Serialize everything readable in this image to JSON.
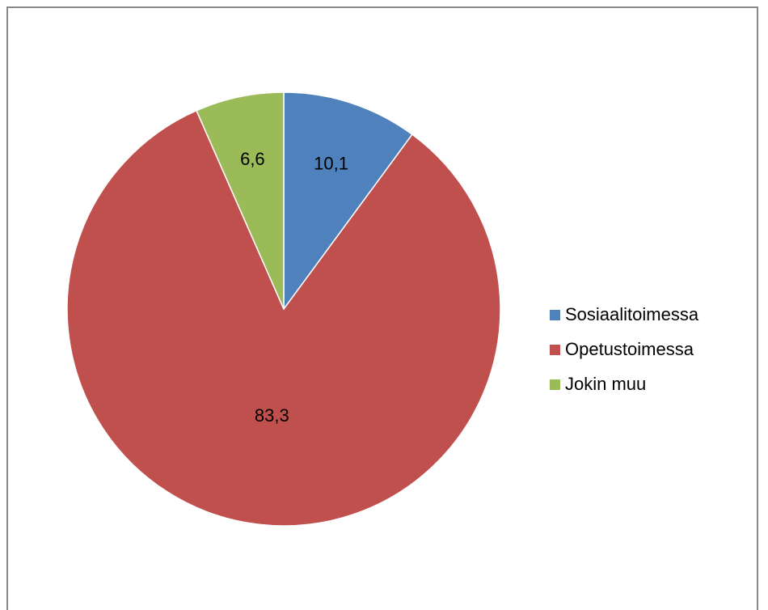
{
  "chart_data": {
    "type": "pie",
    "title": "",
    "categories": [
      "Sosiaalitoimessa",
      "Opetustoimessa",
      "Jokin muu"
    ],
    "values": [
      10.1,
      83.3,
      6.6
    ],
    "labels": [
      "10,1",
      "83,3",
      "6,6"
    ],
    "colors": [
      "#4f81bd",
      "#c0504d",
      "#9bbb59"
    ],
    "legend_position": "right"
  }
}
